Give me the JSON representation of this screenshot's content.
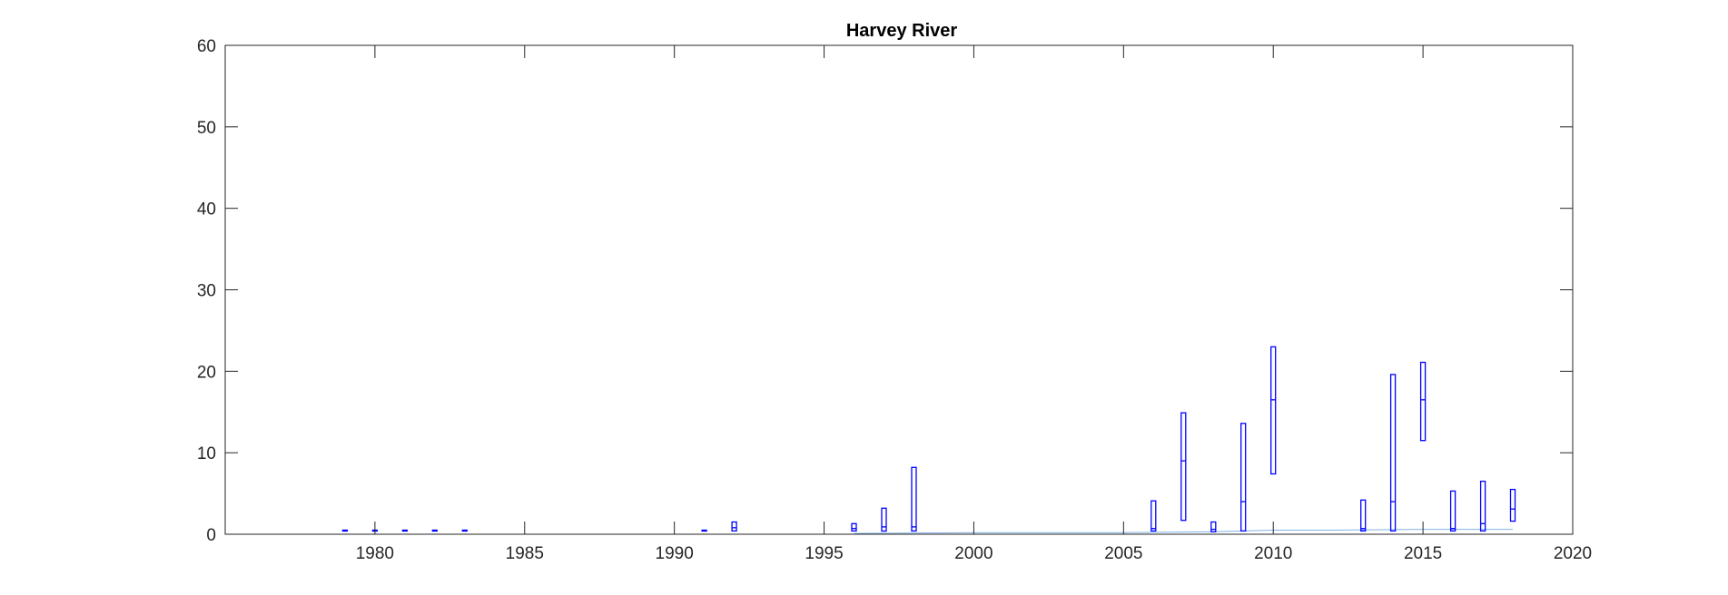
{
  "chart_data": {
    "type": "box",
    "title": "Harvey River",
    "xlabel": "",
    "ylabel": "",
    "xlim": [
      1975,
      2020
    ],
    "ylim": [
      0,
      60
    ],
    "xticks": [
      1980,
      1985,
      1990,
      1995,
      2000,
      2005,
      2010,
      2015,
      2020
    ],
    "yticks": [
      0,
      10,
      20,
      30,
      40,
      50,
      60
    ],
    "xtick_labels": [
      "1980",
      "1985",
      "1990",
      "1995",
      "2000",
      "2005",
      "2010",
      "2015",
      "2020"
    ],
    "ytick_labels": [
      "0",
      "10",
      "20",
      "30",
      "40",
      "50",
      "60"
    ],
    "grid": false,
    "colors": {
      "boxes": "#0000ff",
      "reference_line": "#7fb2e5",
      "axes": "#262626"
    },
    "boxes": [
      {
        "year": 1979,
        "low": 0.4,
        "high": 0.5,
        "median": 0.45
      },
      {
        "year": 1980,
        "low": 0.4,
        "high": 0.5,
        "median": 0.45
      },
      {
        "year": 1981,
        "low": 0.4,
        "high": 0.5,
        "median": 0.45
      },
      {
        "year": 1982,
        "low": 0.4,
        "high": 0.5,
        "median": 0.45
      },
      {
        "year": 1983,
        "low": 0.4,
        "high": 0.5,
        "median": 0.45
      },
      {
        "year": 1991,
        "low": 0.4,
        "high": 0.5,
        "median": 0.45
      },
      {
        "year": 1992,
        "low": 0.4,
        "high": 1.5,
        "median": 0.8
      },
      {
        "year": 1996,
        "low": 0.4,
        "high": 1.3,
        "median": 0.7
      },
      {
        "year": 1997,
        "low": 0.4,
        "high": 3.2,
        "median": 0.9
      },
      {
        "year": 1998,
        "low": 0.4,
        "high": 8.2,
        "median": 0.9
      },
      {
        "year": 2006,
        "low": 0.4,
        "high": 4.1,
        "median": 0.7
      },
      {
        "year": 2007,
        "low": 1.7,
        "high": 14.9,
        "median": 9.0
      },
      {
        "year": 2008,
        "low": 0.3,
        "high": 1.5,
        "median": 0.6
      },
      {
        "year": 2009,
        "low": 0.4,
        "high": 13.6,
        "median": 4.0
      },
      {
        "year": 2010,
        "low": 7.4,
        "high": 23.0,
        "median": 16.5
      },
      {
        "year": 2013,
        "low": 0.4,
        "high": 4.2,
        "median": 0.7
      },
      {
        "year": 2014,
        "low": 0.4,
        "high": 19.6,
        "median": 4.0
      },
      {
        "year": 2015,
        "low": 11.5,
        "high": 21.1,
        "median": 16.5
      },
      {
        "year": 2016,
        "low": 0.4,
        "high": 5.3,
        "median": 0.7
      },
      {
        "year": 2017,
        "low": 0.4,
        "high": 6.5,
        "median": 1.3
      },
      {
        "year": 2018,
        "low": 1.6,
        "high": 5.5,
        "median": 3.1
      }
    ],
    "reference_line": {
      "x": [
        1996,
        2000,
        2005,
        2008,
        2010,
        2012,
        2015,
        2018
      ],
      "y": [
        0.1,
        0.2,
        0.2,
        0.3,
        0.5,
        0.5,
        0.6,
        0.6
      ]
    }
  }
}
